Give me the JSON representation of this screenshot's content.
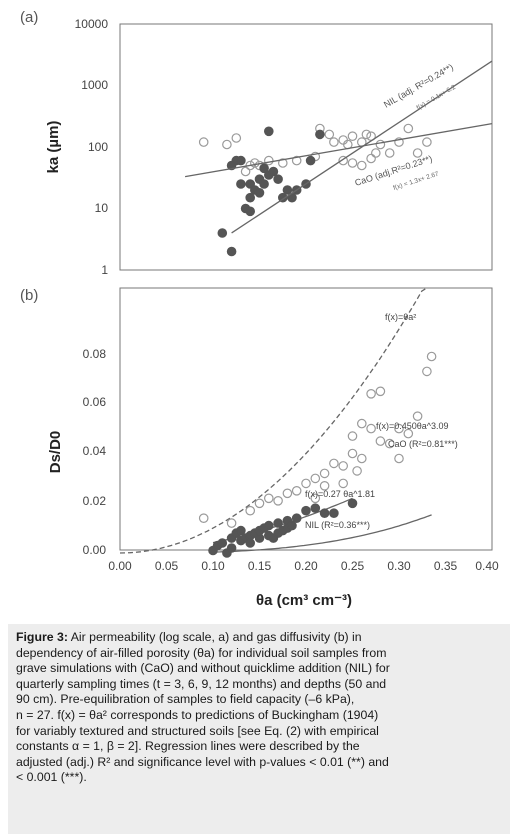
{
  "figure": {
    "xlabel": "θa (cm³ cm⁻³)",
    "panels": [
      {
        "label": "(a)",
        "ylabel": "ka (µm)",
        "scale": "log",
        "yticks": [
          "10000",
          "1000",
          "100",
          "10",
          "1"
        ],
        "annotations": [
          {
            "text": "NIL (adj. R²=0.24**)"
          },
          {
            "text": "f(x) = 0.1x+ 6.2"
          },
          {
            "text": "CaO (adj.R²=0.23**)"
          },
          {
            "text": "f(x) = 1.3x+ 2.67"
          }
        ]
      },
      {
        "label": "(b)",
        "ylabel": "Ds/D0",
        "scale": "linear",
        "yticks": [
          "0.08",
          "0.06",
          "0.04",
          "0.02",
          "0.00"
        ],
        "annotations": [
          {
            "text": "f(x)=θa²"
          },
          {
            "text": "f(x)=0.450θa^3.09"
          },
          {
            "text": "CaO (R²=0.81***)"
          },
          {
            "text": "f(x)=0.27 θa^1.81"
          },
          {
            "text": "NIL (R²=0.36***)"
          }
        ]
      }
    ],
    "xticks": [
      "0.00",
      "0.05",
      "0.10",
      "0.15",
      "0.20",
      "0.25",
      "0.30",
      "0.35",
      "0.40"
    ]
  },
  "chart_data": [
    {
      "type": "scatter",
      "panel": "(a)",
      "xlim": [
        0.0,
        0.4
      ],
      "ylim": [
        1,
        10000
      ],
      "yscale": "log",
      "series": [
        {
          "name": "CaO",
          "marker": "open circle",
          "color": "#9a9a9a",
          "points": [
            [
              0.09,
              120
            ],
            [
              0.115,
              110
            ],
            [
              0.125,
              140
            ],
            [
              0.135,
              40
            ],
            [
              0.14,
              50
            ],
            [
              0.145,
              55
            ],
            [
              0.15,
              50
            ],
            [
              0.16,
              60
            ],
            [
              0.175,
              55
            ],
            [
              0.19,
              60
            ],
            [
              0.21,
              70
            ],
            [
              0.215,
              200
            ],
            [
              0.225,
              160
            ],
            [
              0.23,
              120
            ],
            [
              0.24,
              130
            ],
            [
              0.245,
              110
            ],
            [
              0.25,
              150
            ],
            [
              0.26,
              120
            ],
            [
              0.265,
              160
            ],
            [
              0.27,
              150
            ],
            [
              0.275,
              80
            ],
            [
              0.28,
              110
            ],
            [
              0.29,
              80
            ],
            [
              0.3,
              120
            ],
            [
              0.31,
              200
            ],
            [
              0.32,
              80
            ],
            [
              0.33,
              120
            ],
            [
              0.25,
              55
            ],
            [
              0.26,
              50
            ],
            [
              0.24,
              60
            ],
            [
              0.27,
              65
            ]
          ]
        },
        {
          "name": "NIL",
          "marker": "filled circle",
          "color": "#555555",
          "points": [
            [
              0.11,
              4
            ],
            [
              0.12,
              2
            ],
            [
              0.125,
              60
            ],
            [
              0.13,
              25
            ],
            [
              0.135,
              10
            ],
            [
              0.14,
              15
            ],
            [
              0.14,
              25
            ],
            [
              0.145,
              20
            ],
            [
              0.15,
              18
            ],
            [
              0.15,
              30
            ],
            [
              0.155,
              45
            ],
            [
              0.16,
              35
            ],
            [
              0.16,
              180
            ],
            [
              0.165,
              40
            ],
            [
              0.17,
              30
            ],
            [
              0.175,
              15
            ],
            [
              0.18,
              20
            ],
            [
              0.185,
              15
            ],
            [
              0.19,
              20
            ],
            [
              0.2,
              25
            ],
            [
              0.205,
              60
            ],
            [
              0.215,
              160
            ],
            [
              0.12,
              50
            ],
            [
              0.13,
              60
            ],
            [
              0.14,
              9
            ],
            [
              0.155,
              25
            ]
          ]
        }
      ],
      "fits": [
        {
          "name": "NIL",
          "x": [
            0.12,
            0.4
          ],
          "y": [
            4,
            2500
          ]
        },
        {
          "name": "CaO",
          "x": [
            0.07,
            0.4
          ],
          "y": [
            33,
            240
          ]
        }
      ]
    },
    {
      "type": "scatter",
      "panel": "(b)",
      "xlim": [
        0.0,
        0.4
      ],
      "ylim": [
        0.0,
        0.1
      ],
      "yscale": "linear",
      "series": [
        {
          "name": "CaO",
          "marker": "open circle",
          "color": "#9a9a9a",
          "points": [
            [
              0.09,
              0.014
            ],
            [
              0.12,
              0.012
            ],
            [
              0.14,
              0.017
            ],
            [
              0.15,
              0.02
            ],
            [
              0.16,
              0.022
            ],
            [
              0.17,
              0.021
            ],
            [
              0.18,
              0.024
            ],
            [
              0.19,
              0.025
            ],
            [
              0.2,
              0.028
            ],
            [
              0.21,
              0.03
            ],
            [
              0.22,
              0.032
            ],
            [
              0.23,
              0.036
            ],
            [
              0.24,
              0.035
            ],
            [
              0.25,
              0.04
            ],
            [
              0.25,
              0.047
            ],
            [
              0.26,
              0.038
            ],
            [
              0.26,
              0.052
            ],
            [
              0.27,
              0.05
            ],
            [
              0.27,
              0.064
            ],
            [
              0.28,
              0.065
            ],
            [
              0.28,
              0.045
            ],
            [
              0.29,
              0.044
            ],
            [
              0.3,
              0.038
            ],
            [
              0.3,
              0.05
            ],
            [
              0.31,
              0.048
            ],
            [
              0.32,
              0.055
            ],
            [
              0.33,
              0.073
            ],
            [
              0.335,
              0.079
            ],
            [
              0.21,
              0.022
            ],
            [
              0.22,
              0.027
            ],
            [
              0.24,
              0.028
            ],
            [
              0.255,
              0.033
            ]
          ]
        },
        {
          "name": "NIL",
          "marker": "filled circle",
          "color": "#555555",
          "points": [
            [
              0.1,
              0.001
            ],
            [
              0.105,
              0.003
            ],
            [
              0.11,
              0.004
            ],
            [
              0.115,
              0.0
            ],
            [
              0.12,
              0.002
            ],
            [
              0.12,
              0.006
            ],
            [
              0.125,
              0.008
            ],
            [
              0.13,
              0.005
            ],
            [
              0.13,
              0.009
            ],
            [
              0.135,
              0.006
            ],
            [
              0.14,
              0.007
            ],
            [
              0.14,
              0.004
            ],
            [
              0.145,
              0.008
            ],
            [
              0.15,
              0.006
            ],
            [
              0.15,
              0.009
            ],
            [
              0.155,
              0.01
            ],
            [
              0.16,
              0.011
            ],
            [
              0.16,
              0.007
            ],
            [
              0.165,
              0.006
            ],
            [
              0.17,
              0.008
            ],
            [
              0.17,
              0.012
            ],
            [
              0.175,
              0.009
            ],
            [
              0.18,
              0.01
            ],
            [
              0.18,
              0.013
            ],
            [
              0.185,
              0.011
            ],
            [
              0.19,
              0.014
            ],
            [
              0.2,
              0.017
            ],
            [
              0.21,
              0.018
            ],
            [
              0.22,
              0.016
            ],
            [
              0.23,
              0.016
            ],
            [
              0.25,
              0.02
            ]
          ]
        }
      ],
      "curves": [
        {
          "name": "Buckingham f(x)=θa²",
          "style": "dashed",
          "coef": 1.0,
          "exp": 2.0,
          "x": [
            0.0,
            0.33
          ]
        },
        {
          "name": "CaO fit",
          "style": "solid",
          "coef": 0.45,
          "exp": 3.09,
          "x": [
            0.1,
            0.335
          ]
        },
        {
          "name": "NIL fit",
          "style": "solid",
          "coef": 0.27,
          "exp": 1.81,
          "x": [
            0.1,
            0.25
          ]
        }
      ]
    }
  ],
  "caption": {
    "label": "Figure 3:",
    "lines": [
      "Air permeability (log scale, a) and gas diffusivity (b) in",
      "dependency of air-filled porosity (θa) for individual soil samples from",
      "grave simulations with (CaO) and without quicklime addition (NIL) for",
      "quarterly sampling times (t = 3, 6, 9, 12 months) and depths (50 and",
      "90 cm). Pre-equilibration of samples to field capacity (–6 kPa),",
      "n = 27. f(x) = θa² corresponds to predictions of Buckingham (1904)",
      "for variably textured and structured soils [see Eq. (2) with empirical",
      "constants α = 1, β = 2]. Regression lines were described by the",
      "adjusted (adj.) R² and significance level with p-values < 0.01 (**) and",
      "< 0.001 (***)."
    ]
  }
}
